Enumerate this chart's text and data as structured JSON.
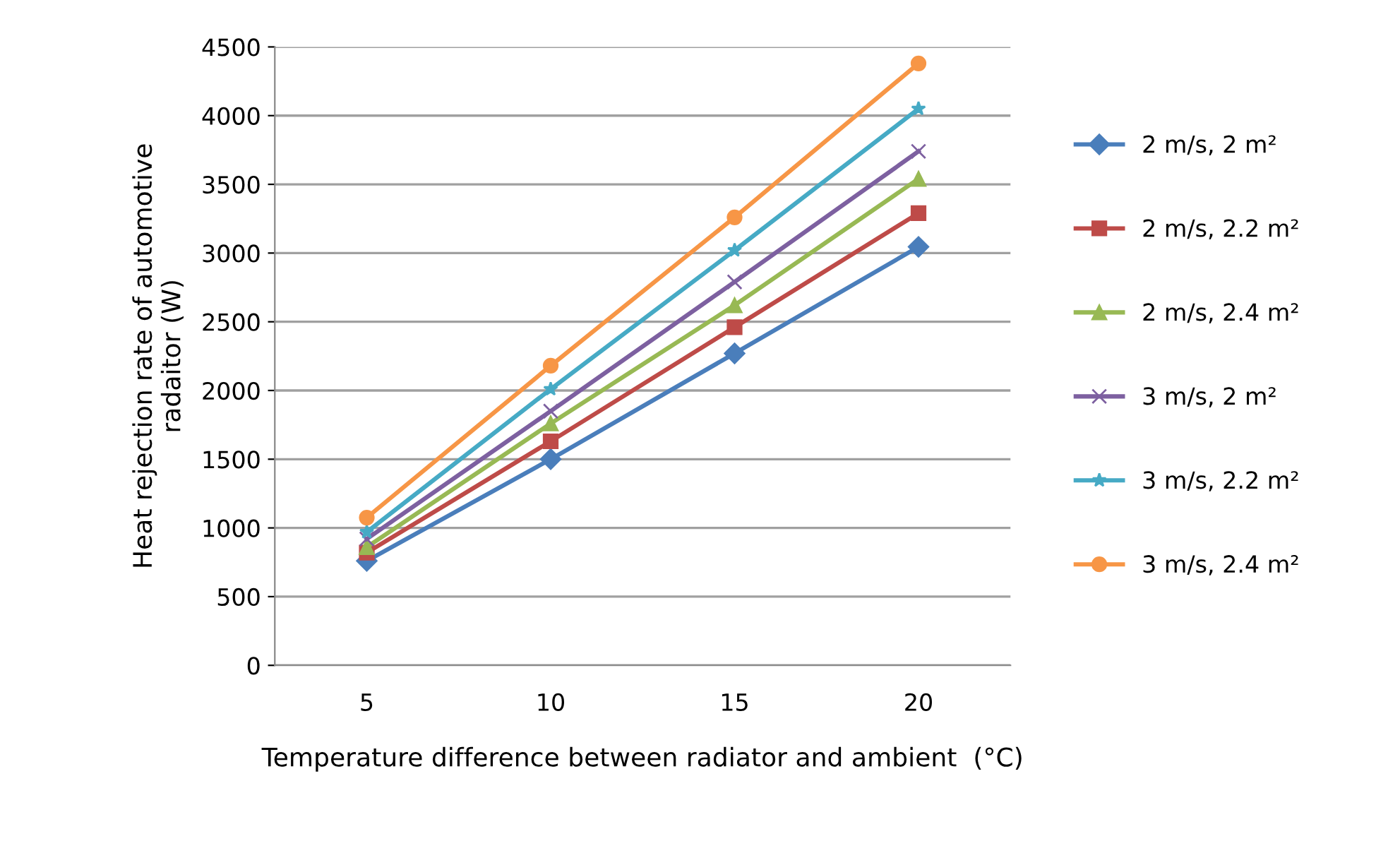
{
  "chart_data": {
    "type": "line",
    "xlabel": "Temperature difference between radiator and ambient  (°C)",
    "ylabel": "Heat rejection rate of automotive\nradaitor (W)",
    "categories": [
      "5",
      "10",
      "15",
      "20"
    ],
    "series": [
      {
        "name": "2 m/s, 2 m²",
        "color": "#4a7ebb",
        "marker": "diamond",
        "values": [
          760,
          1500,
          2270,
          3045
        ]
      },
      {
        "name": "2 m/s, 2.2 m²",
        "color": "#be4b48",
        "marker": "square",
        "values": [
          820,
          1630,
          2460,
          3290
        ]
      },
      {
        "name": "2 m/s, 2.4 m²",
        "color": "#98b954",
        "marker": "triangle",
        "values": [
          860,
          1760,
          2620,
          3540
        ]
      },
      {
        "name": "3 m/s, 2 m²",
        "color": "#7d60a0",
        "marker": "cross",
        "values": [
          920,
          1850,
          2790,
          3740
        ]
      },
      {
        "name": "3 m/s, 2.2 m²",
        "color": "#46aac5",
        "marker": "star",
        "values": [
          970,
          2010,
          3020,
          4050
        ]
      },
      {
        "name": "3 m/s, 2.4 m²",
        "color": "#f79646",
        "marker": "circle",
        "values": [
          1075,
          2180,
          3260,
          4380
        ]
      }
    ],
    "ylim": [
      0,
      4500
    ],
    "yticks": [
      0,
      500,
      1000,
      1500,
      2000,
      2500,
      3000,
      3500,
      4000,
      4500
    ],
    "grid": "y",
    "legend": "right"
  }
}
